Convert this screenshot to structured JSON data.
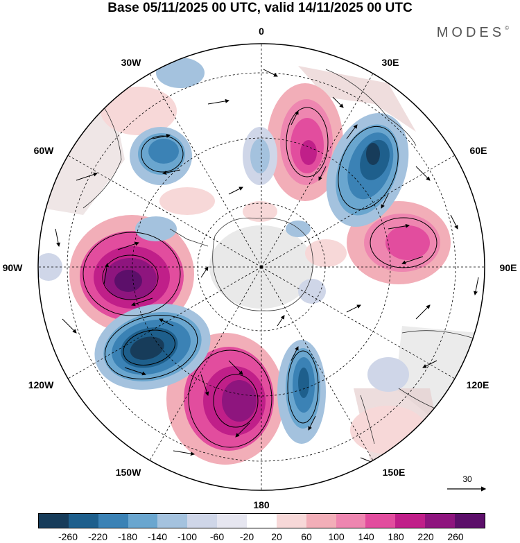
{
  "header": {
    "title": "Base 05/11/2025 00 UTC, valid 14/11/2025 00 UTC",
    "brand": "MODES",
    "brand_mark": "©"
  },
  "map": {
    "projection": "south-polar-stereographic",
    "longitude_labels": [
      "0",
      "30E",
      "60E",
      "90E",
      "120E",
      "150E",
      "180",
      "150W",
      "120W",
      "90W",
      "60W",
      "30W"
    ],
    "field": "geopotential height anomaly with wind vectors",
    "wind_reference": {
      "value": "30"
    }
  },
  "legend": {
    "colors": [
      "#173c5a",
      "#1e5f8c",
      "#3b82b5",
      "#6aa6cf",
      "#a4c2de",
      "#cfd6e8",
      "#e6e6f0",
      "#ffffff",
      "#f7d8d8",
      "#f2aeb8",
      "#ee86b0",
      "#e24d9e",
      "#c01f89",
      "#8e157e",
      "#5c0f6a"
    ],
    "ticks": [
      "-260",
      "-220",
      "-180",
      "-140",
      "-100",
      "-60",
      "-20",
      "20",
      "60",
      "100",
      "140",
      "180",
      "220",
      "260"
    ]
  }
}
